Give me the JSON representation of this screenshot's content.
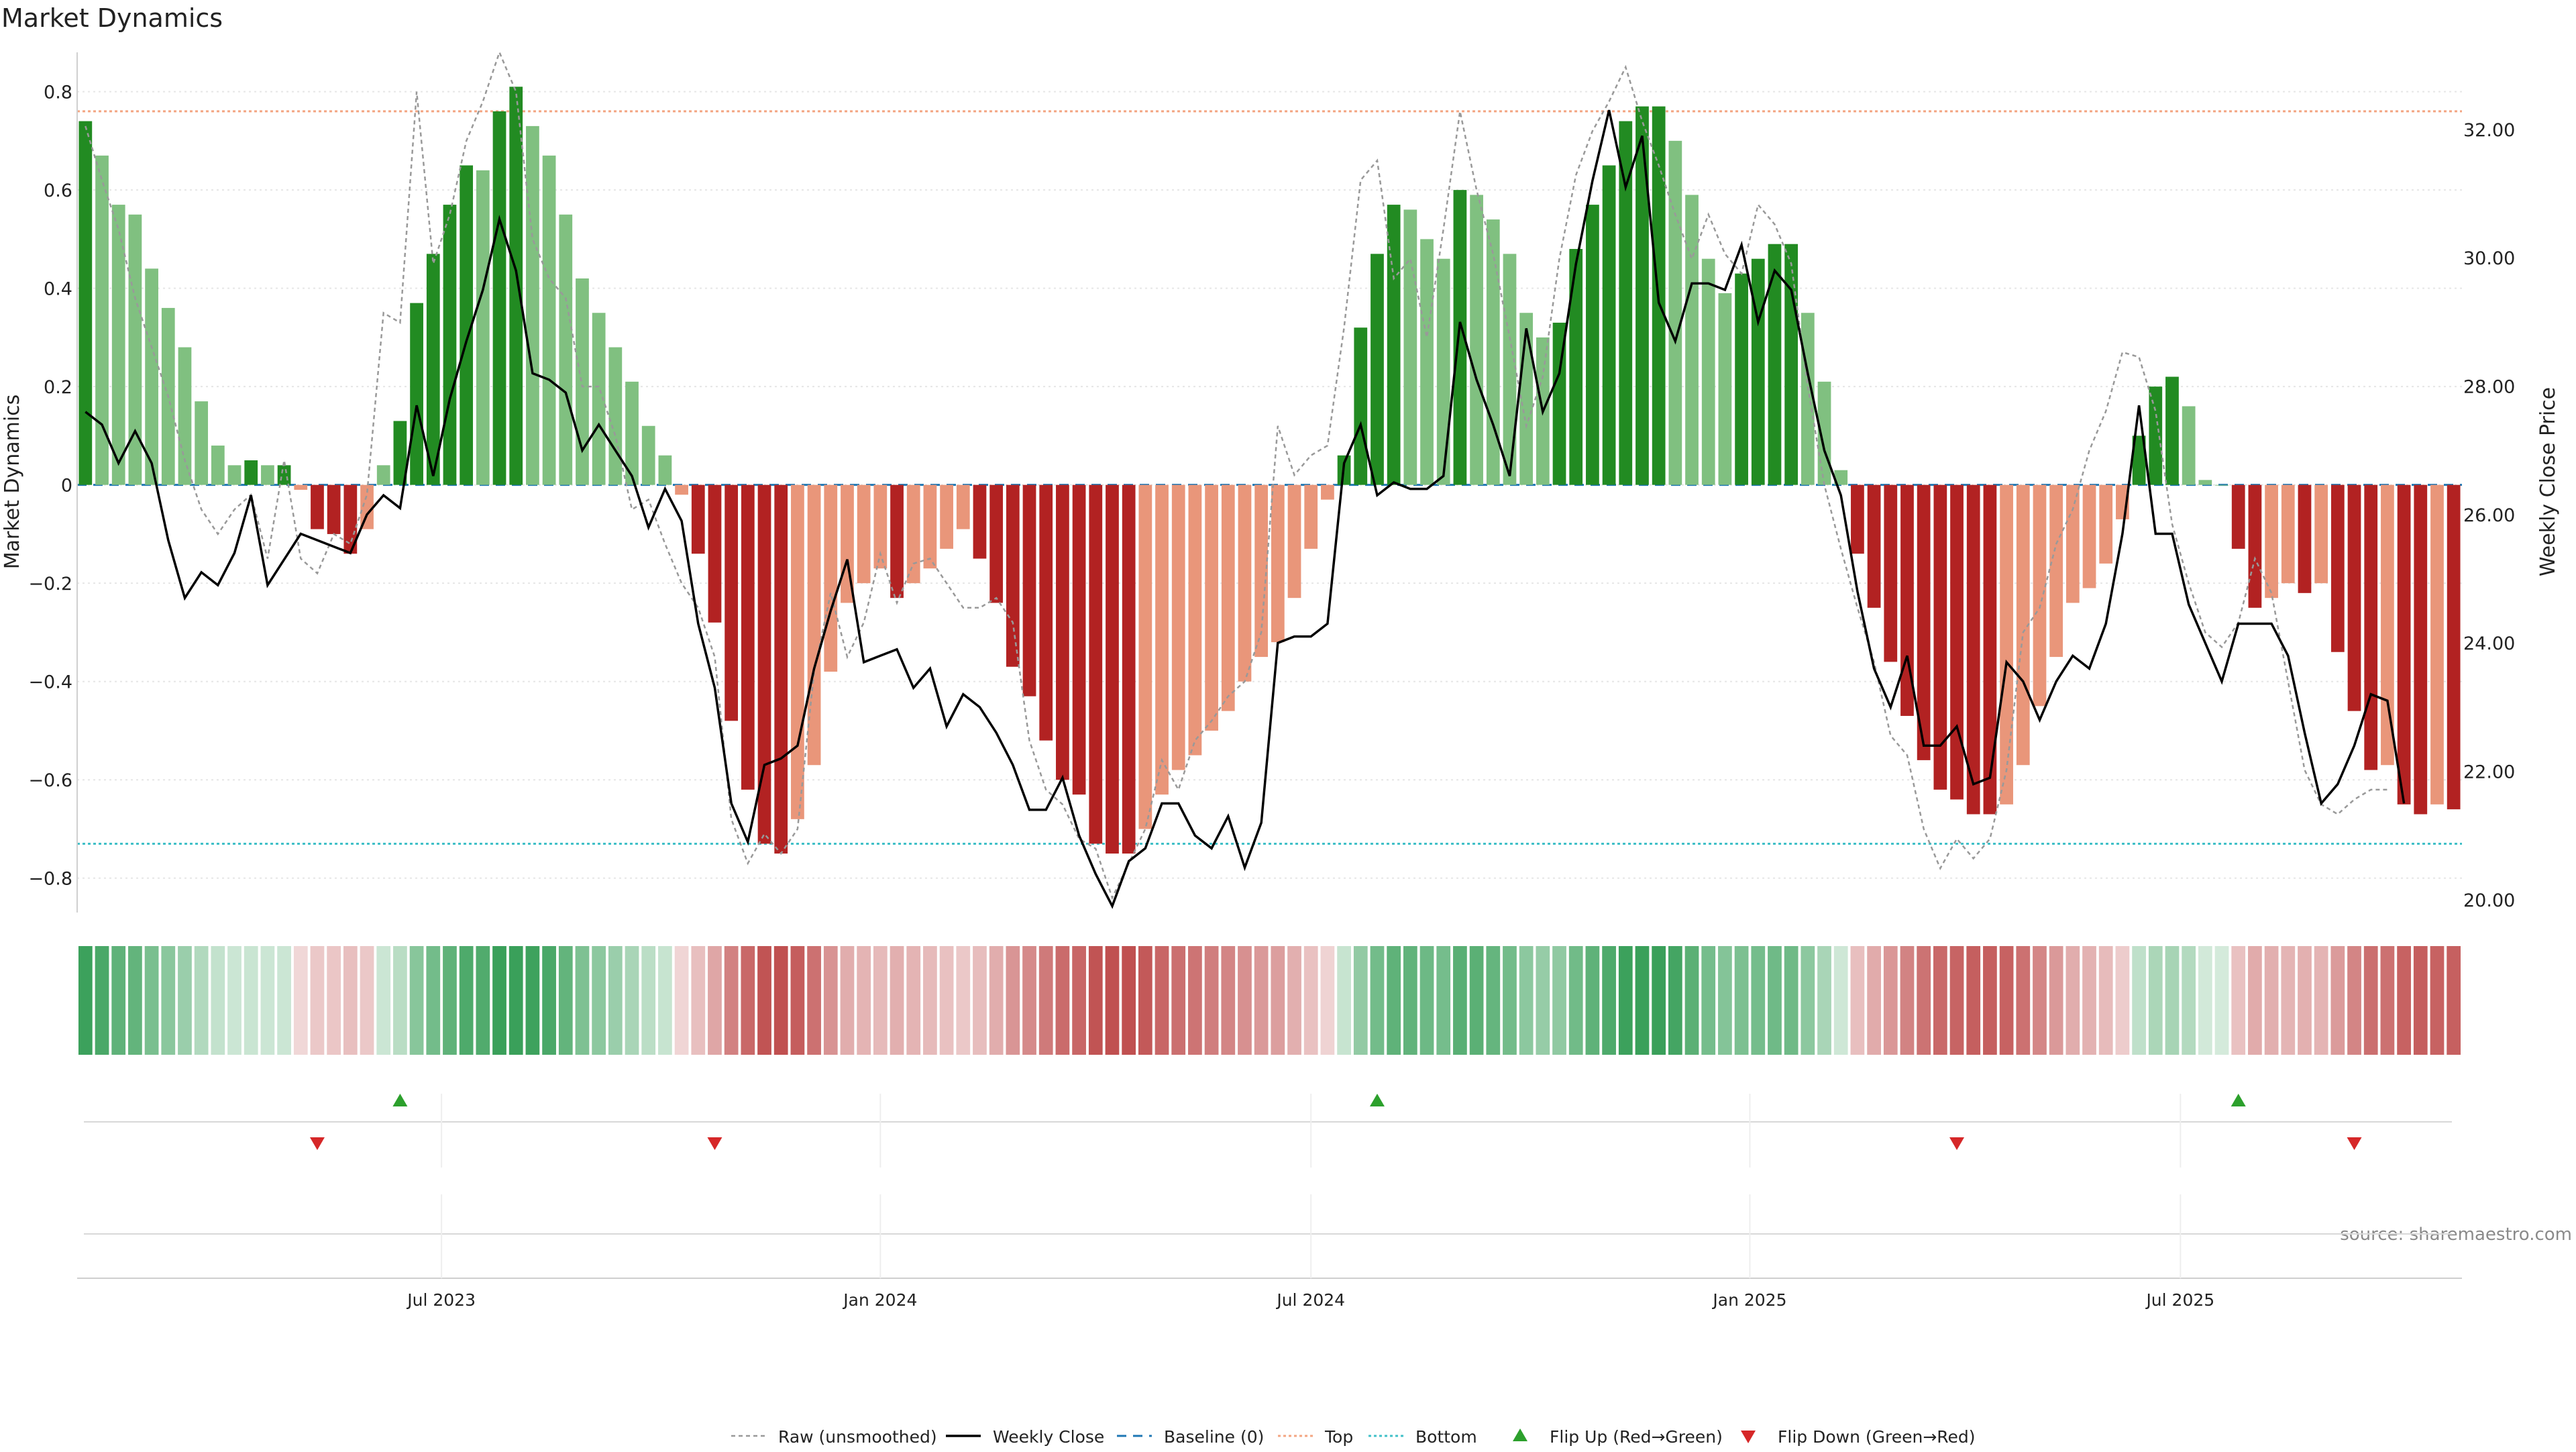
{
  "chart_data": {
    "type": "bar",
    "title": "Market Dynamics",
    "ylabel_left": "Market Dynamics",
    "ylabel_right": "Weekly Close Price",
    "ylim_left": [
      -0.87,
      0.88
    ],
    "ylim_right": [
      19.8,
      33.2
    ],
    "y_ticks_left": [
      {
        "value": 0.8,
        "label": "0.8"
      },
      {
        "value": 0.6,
        "label": "0.6"
      },
      {
        "value": 0.4,
        "label": "0.4"
      },
      {
        "value": 0.2,
        "label": "0.2"
      },
      {
        "value": 0,
        "label": "0"
      },
      {
        "value": -0.2,
        "label": "−0.2"
      },
      {
        "value": -0.4,
        "label": "−0.4"
      },
      {
        "value": -0.6,
        "label": "−0.6"
      },
      {
        "value": -0.8,
        "label": "−0.8"
      }
    ],
    "y_ticks_right": [
      {
        "value": 32,
        "label": "32.00"
      },
      {
        "value": 30,
        "label": "30.00"
      },
      {
        "value": 28,
        "label": "28.00"
      },
      {
        "value": 26,
        "label": "26.00"
      },
      {
        "value": 24,
        "label": "24.00"
      },
      {
        "value": 22,
        "label": "22.00"
      },
      {
        "value": 20,
        "label": "20.00"
      }
    ],
    "x_ticks": [
      {
        "week": 21.5,
        "label": "Jul 2023"
      },
      {
        "week": 48,
        "label": "Jan 2024"
      },
      {
        "week": 74,
        "label": "Jul 2024"
      },
      {
        "week": 100.5,
        "label": "Jan 2025"
      },
      {
        "week": 126.5,
        "label": "Jul 2025"
      }
    ],
    "top_line": 0.76,
    "bottom_line": -0.73,
    "baseline": 0,
    "bars": [
      0.74,
      0.67,
      0.57,
      0.55,
      0.44,
      0.36,
      0.28,
      0.17,
      0.08,
      0.04,
      0.05,
      0.04,
      0.04,
      -0.01,
      -0.09,
      -0.1,
      -0.14,
      -0.09,
      0.04,
      0.13,
      0.37,
      0.47,
      0.57,
      0.65,
      0.64,
      0.76,
      0.81,
      0.73,
      0.67,
      0.55,
      0.42,
      0.35,
      0.28,
      0.21,
      0.12,
      0.06,
      -0.02,
      -0.14,
      -0.28,
      -0.48,
      -0.62,
      -0.73,
      -0.75,
      -0.68,
      -0.57,
      -0.38,
      -0.24,
      -0.2,
      -0.17,
      -0.23,
      -0.2,
      -0.17,
      -0.13,
      -0.09,
      -0.15,
      -0.24,
      -0.37,
      -0.43,
      -0.52,
      -0.6,
      -0.63,
      -0.73,
      -0.75,
      -0.75,
      -0.7,
      -0.63,
      -0.58,
      -0.55,
      -0.5,
      -0.46,
      -0.4,
      -0.35,
      -0.32,
      -0.23,
      -0.13,
      -0.03,
      0.06,
      0.32,
      0.47,
      0.57,
      0.56,
      0.5,
      0.46,
      0.6,
      0.59,
      0.54,
      0.47,
      0.35,
      0.3,
      0.33,
      0.48,
      0.57,
      0.65,
      0.74,
      0.77,
      0.77,
      0.7,
      0.59,
      0.46,
      0.39,
      0.43,
      0.46,
      0.49,
      0.49,
      0.35,
      0.21,
      0.03,
      -0.14,
      -0.25,
      -0.36,
      -0.47,
      -0.56,
      -0.62,
      -0.64,
      -0.67,
      -0.67,
      -0.65,
      -0.57,
      -0.45,
      -0.35,
      -0.24,
      -0.21,
      -0.16,
      -0.07,
      0.1,
      0.2,
      0.22,
      0.16,
      0.01,
      0,
      -0.13,
      -0.25,
      -0.23,
      -0.2,
      -0.22,
      -0.2,
      -0.34,
      -0.46,
      -0.58,
      -0.57,
      -0.65,
      -0.67,
      -0.65,
      -0.66
    ],
    "series": [
      {
        "name": "Raw (unsmoothed)",
        "values": [
          0.73,
          0.62,
          0.52,
          0.38,
          0.28,
          0.18,
          0.05,
          -0.05,
          -0.1,
          -0.05,
          -0.02,
          -0.15,
          0.05,
          -0.15,
          -0.18,
          -0.1,
          -0.12,
          -0.02,
          0.35,
          0.33,
          0.8,
          0.45,
          0.55,
          0.7,
          0.78,
          0.88,
          0.8,
          0.5,
          0.42,
          0.38,
          0.2,
          0.2,
          0.1,
          -0.05,
          -0.03,
          -0.12,
          -0.2,
          -0.25,
          -0.35,
          -0.68,
          -0.77,
          -0.71,
          -0.75,
          -0.7,
          -0.38,
          -0.22,
          -0.35,
          -0.28,
          -0.14,
          -0.24,
          -0.16,
          -0.15,
          -0.2,
          -0.25,
          -0.25,
          -0.23,
          -0.28,
          -0.52,
          -0.62,
          -0.65,
          -0.72,
          -0.74,
          -0.84,
          -0.77,
          -0.7,
          -0.56,
          -0.62,
          -0.52,
          -0.48,
          -0.43,
          -0.4,
          -0.3,
          0.12,
          0.02,
          0.06,
          0.08,
          0.32,
          0.62,
          0.66,
          0.42,
          0.46,
          0.3,
          0.52,
          0.76,
          0.6,
          0.47,
          0.3,
          0.12,
          0.22,
          0.46,
          0.63,
          0.72,
          0.78,
          0.85,
          0.74,
          0.65,
          0.55,
          0.46,
          0.55,
          0.47,
          0.43,
          0.57,
          0.53,
          0.45,
          0.2,
          0,
          -0.13,
          -0.25,
          -0.36,
          -0.51,
          -0.55,
          -0.7,
          -0.78,
          -0.72,
          -0.76,
          -0.72,
          -0.58,
          -0.3,
          -0.25,
          -0.12,
          -0.05,
          0.07,
          0.15,
          0.27,
          0.26,
          0.15,
          -0.08,
          -0.2,
          -0.3,
          -0.33,
          -0.28,
          -0.15,
          -0.22,
          -0.4,
          -0.58,
          -0.65,
          -0.67,
          -0.64,
          -0.62,
          -0.62
        ]
      },
      {
        "name": "Weekly Close",
        "values": [
          27.6,
          27.4,
          26.8,
          27.3,
          26.8,
          25.6,
          24.7,
          25.1,
          24.9,
          25.4,
          26.3,
          24.9,
          25.3,
          25.7,
          25.6,
          25.5,
          25.4,
          26.0,
          26.3,
          26.1,
          27.7,
          26.6,
          27.8,
          28.7,
          29.5,
          30.6,
          29.8,
          28.2,
          28.1,
          27.9,
          27.0,
          27.4,
          27.0,
          26.6,
          25.8,
          26.4,
          25.9,
          24.3,
          23.3,
          21.5,
          20.9,
          22.1,
          22.2,
          22.4,
          23.6,
          24.5,
          25.3,
          23.7,
          23.8,
          23.9,
          23.3,
          23.6,
          22.7,
          23.2,
          23.0,
          22.6,
          22.1,
          21.4,
          21.4,
          21.9,
          21.0,
          20.4,
          19.9,
          20.6,
          20.8,
          21.5,
          21.5,
          21.0,
          20.8,
          21.3,
          20.5,
          21.2,
          24.0,
          24.1,
          24.1,
          24.3,
          26.8,
          27.4,
          26.3,
          26.5,
          26.4,
          26.4,
          26.6,
          29.0,
          28.1,
          27.4,
          26.6,
          28.9,
          27.6,
          28.2,
          29.9,
          31.2,
          32.3,
          31.1,
          31.9,
          29.3,
          28.7,
          29.6,
          29.6,
          29.5,
          30.2,
          29.0,
          29.8,
          29.5,
          28.2,
          27.0,
          26.3,
          24.8,
          23.6,
          23.0,
          23.8,
          22.4,
          22.4,
          22.7,
          21.8,
          21.9,
          23.7,
          23.4,
          22.8,
          23.4,
          23.8,
          23.6,
          24.3,
          25.7,
          27.7,
          25.7,
          25.7,
          24.6,
          24.0,
          23.4,
          24.3,
          24.3,
          24.3,
          23.8,
          22.6,
          21.5,
          21.8,
          22.4,
          23.2,
          23.1,
          21.5
        ]
      }
    ],
    "strip_note": "per-week colour strip mirrors bar sign and magnitude",
    "flip_up_weeks": [
      19,
      78,
      130
    ],
    "flip_down_weeks": [
      14,
      38,
      113,
      137
    ],
    "legend": [
      {
        "label": "Raw (unsmoothed)",
        "style": "dotted-gray"
      },
      {
        "label": "Weekly Close",
        "style": "solid-black"
      },
      {
        "label": "Baseline (0)",
        "style": "dashed-blue"
      },
      {
        "label": "Top",
        "style": "dotted-orange"
      },
      {
        "label": "Bottom",
        "style": "dotted-teal"
      },
      {
        "label": "Flip Up (Red→Green)",
        "style": "triangle-up-green"
      },
      {
        "label": "Flip Down (Green→Red)",
        "style": "triangle-down-red"
      }
    ],
    "legend_position": "bottom-center",
    "source": "source: sharemaestro.com",
    "colors": {
      "green_strong": "#228b22",
      "green_light": "#80c080",
      "red_strong": "#b22222",
      "red_light": "#e9967a",
      "baseline": "#1f77b4",
      "top": "#f4a582",
      "bottom": "#40c0c8",
      "flip_up": "#2ca02c",
      "flip_down": "#d62728",
      "raw": "#999999",
      "close": "#000000"
    },
    "grid": true
  }
}
